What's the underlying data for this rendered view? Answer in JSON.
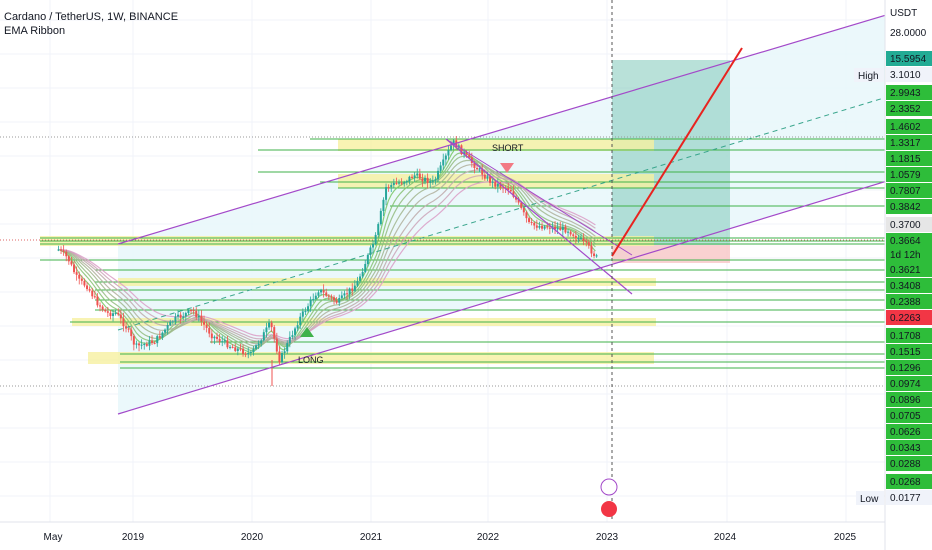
{
  "header": {
    "symbol_line": "Cardano / TetherUS, 1W, BINANCE",
    "indicator": "EMA Ribbon"
  },
  "axis": {
    "currency": "USDT",
    "top_value": "28.0000",
    "high_label": "High",
    "low_label": "Low",
    "countdown": "1d 12h"
  },
  "colors": {
    "channel": "#a349c9",
    "up": "#26a69a",
    "down": "#ef5350",
    "green_label": "#2ebd3a",
    "red_label": "#f23645",
    "zone_yellow": "#f6f0a0",
    "profit_zone": "#7fc9b9",
    "loss_zone": "#f7c5c5",
    "projection": "#e8231f"
  },
  "chart_data": {
    "type": "candlestick",
    "symbol": "Cardano / TetherUS",
    "interval": "1W",
    "exchange": "BINANCE",
    "indicator": "EMA Ribbon",
    "scale": "log",
    "x_tick_labels": [
      "May",
      "2019",
      "2020",
      "2021",
      "2022",
      "2023",
      "2024",
      "2025"
    ],
    "price_labels": [
      {
        "value": "15.5954",
        "style": "green"
      },
      {
        "value": "3.1010",
        "style": "high"
      },
      {
        "value": "2.9943",
        "style": "green"
      },
      {
        "value": "2.3352",
        "style": "green"
      },
      {
        "value": "1.4602",
        "style": "green"
      },
      {
        "value": "1.3317",
        "style": "green"
      },
      {
        "value": "1.1815",
        "style": "green"
      },
      {
        "value": "1.0579",
        "style": "green"
      },
      {
        "value": "0.7807",
        "style": "green"
      },
      {
        "value": "0.3842",
        "style": "green"
      },
      {
        "value": "0.3700",
        "style": "gray"
      },
      {
        "value": "0.3664",
        "style": "green"
      },
      {
        "value": "1d 12h",
        "style": "green"
      },
      {
        "value": "0.3621",
        "style": "green"
      },
      {
        "value": "0.3408",
        "style": "green"
      },
      {
        "value": "0.2388",
        "style": "green"
      },
      {
        "value": "0.2263",
        "style": "red"
      },
      {
        "value": "0.1708",
        "style": "green"
      },
      {
        "value": "0.1515",
        "style": "green"
      },
      {
        "value": "0.1296",
        "style": "green"
      },
      {
        "value": "0.0974",
        "style": "green"
      },
      {
        "value": "0.0896",
        "style": "green"
      },
      {
        "value": "0.0705",
        "style": "green"
      },
      {
        "value": "0.0626",
        "style": "green"
      },
      {
        "value": "0.0343",
        "style": "green"
      },
      {
        "value": "0.0288",
        "style": "green"
      },
      {
        "value": "0.0268",
        "style": "green"
      },
      {
        "value": "0.0177",
        "style": "low"
      }
    ],
    "zone_labels": [
      "SHORT",
      "LONG"
    ],
    "price_path": [
      [
        "2018-04",
        0.3
      ],
      [
        "2018-05",
        0.25
      ],
      [
        "2018-06",
        0.16
      ],
      [
        "2018-07",
        0.14
      ],
      [
        "2018-08",
        0.1
      ],
      [
        "2018-09",
        0.08
      ],
      [
        "2018-10",
        0.08
      ],
      [
        "2018-11",
        0.06
      ],
      [
        "2018-12",
        0.04
      ],
      [
        "2019-02",
        0.045
      ],
      [
        "2019-04",
        0.07
      ],
      [
        "2019-06",
        0.085
      ],
      [
        "2019-08",
        0.05
      ],
      [
        "2019-10",
        0.04
      ],
      [
        "2019-12",
        0.034
      ],
      [
        "2020-02",
        0.065
      ],
      [
        "2020-03",
        0.03
      ],
      [
        "2020-05",
        0.07
      ],
      [
        "2020-07",
        0.13
      ],
      [
        "2020-09",
        0.1
      ],
      [
        "2020-11",
        0.15
      ],
      [
        "2021-01",
        0.4
      ],
      [
        "2021-02",
        1.1
      ],
      [
        "2021-04",
        1.25
      ],
      [
        "2021-05",
        1.4
      ],
      [
        "2021-07",
        1.2
      ],
      [
        "2021-09",
        2.8
      ],
      [
        "2021-11",
        1.8
      ],
      [
        "2022-01",
        1.2
      ],
      [
        "2022-03",
        1.05
      ],
      [
        "2022-05",
        0.5
      ],
      [
        "2022-07",
        0.48
      ],
      [
        "2022-09",
        0.45
      ],
      [
        "2022-11",
        0.32
      ],
      [
        "2022-12",
        0.25
      ]
    ]
  }
}
